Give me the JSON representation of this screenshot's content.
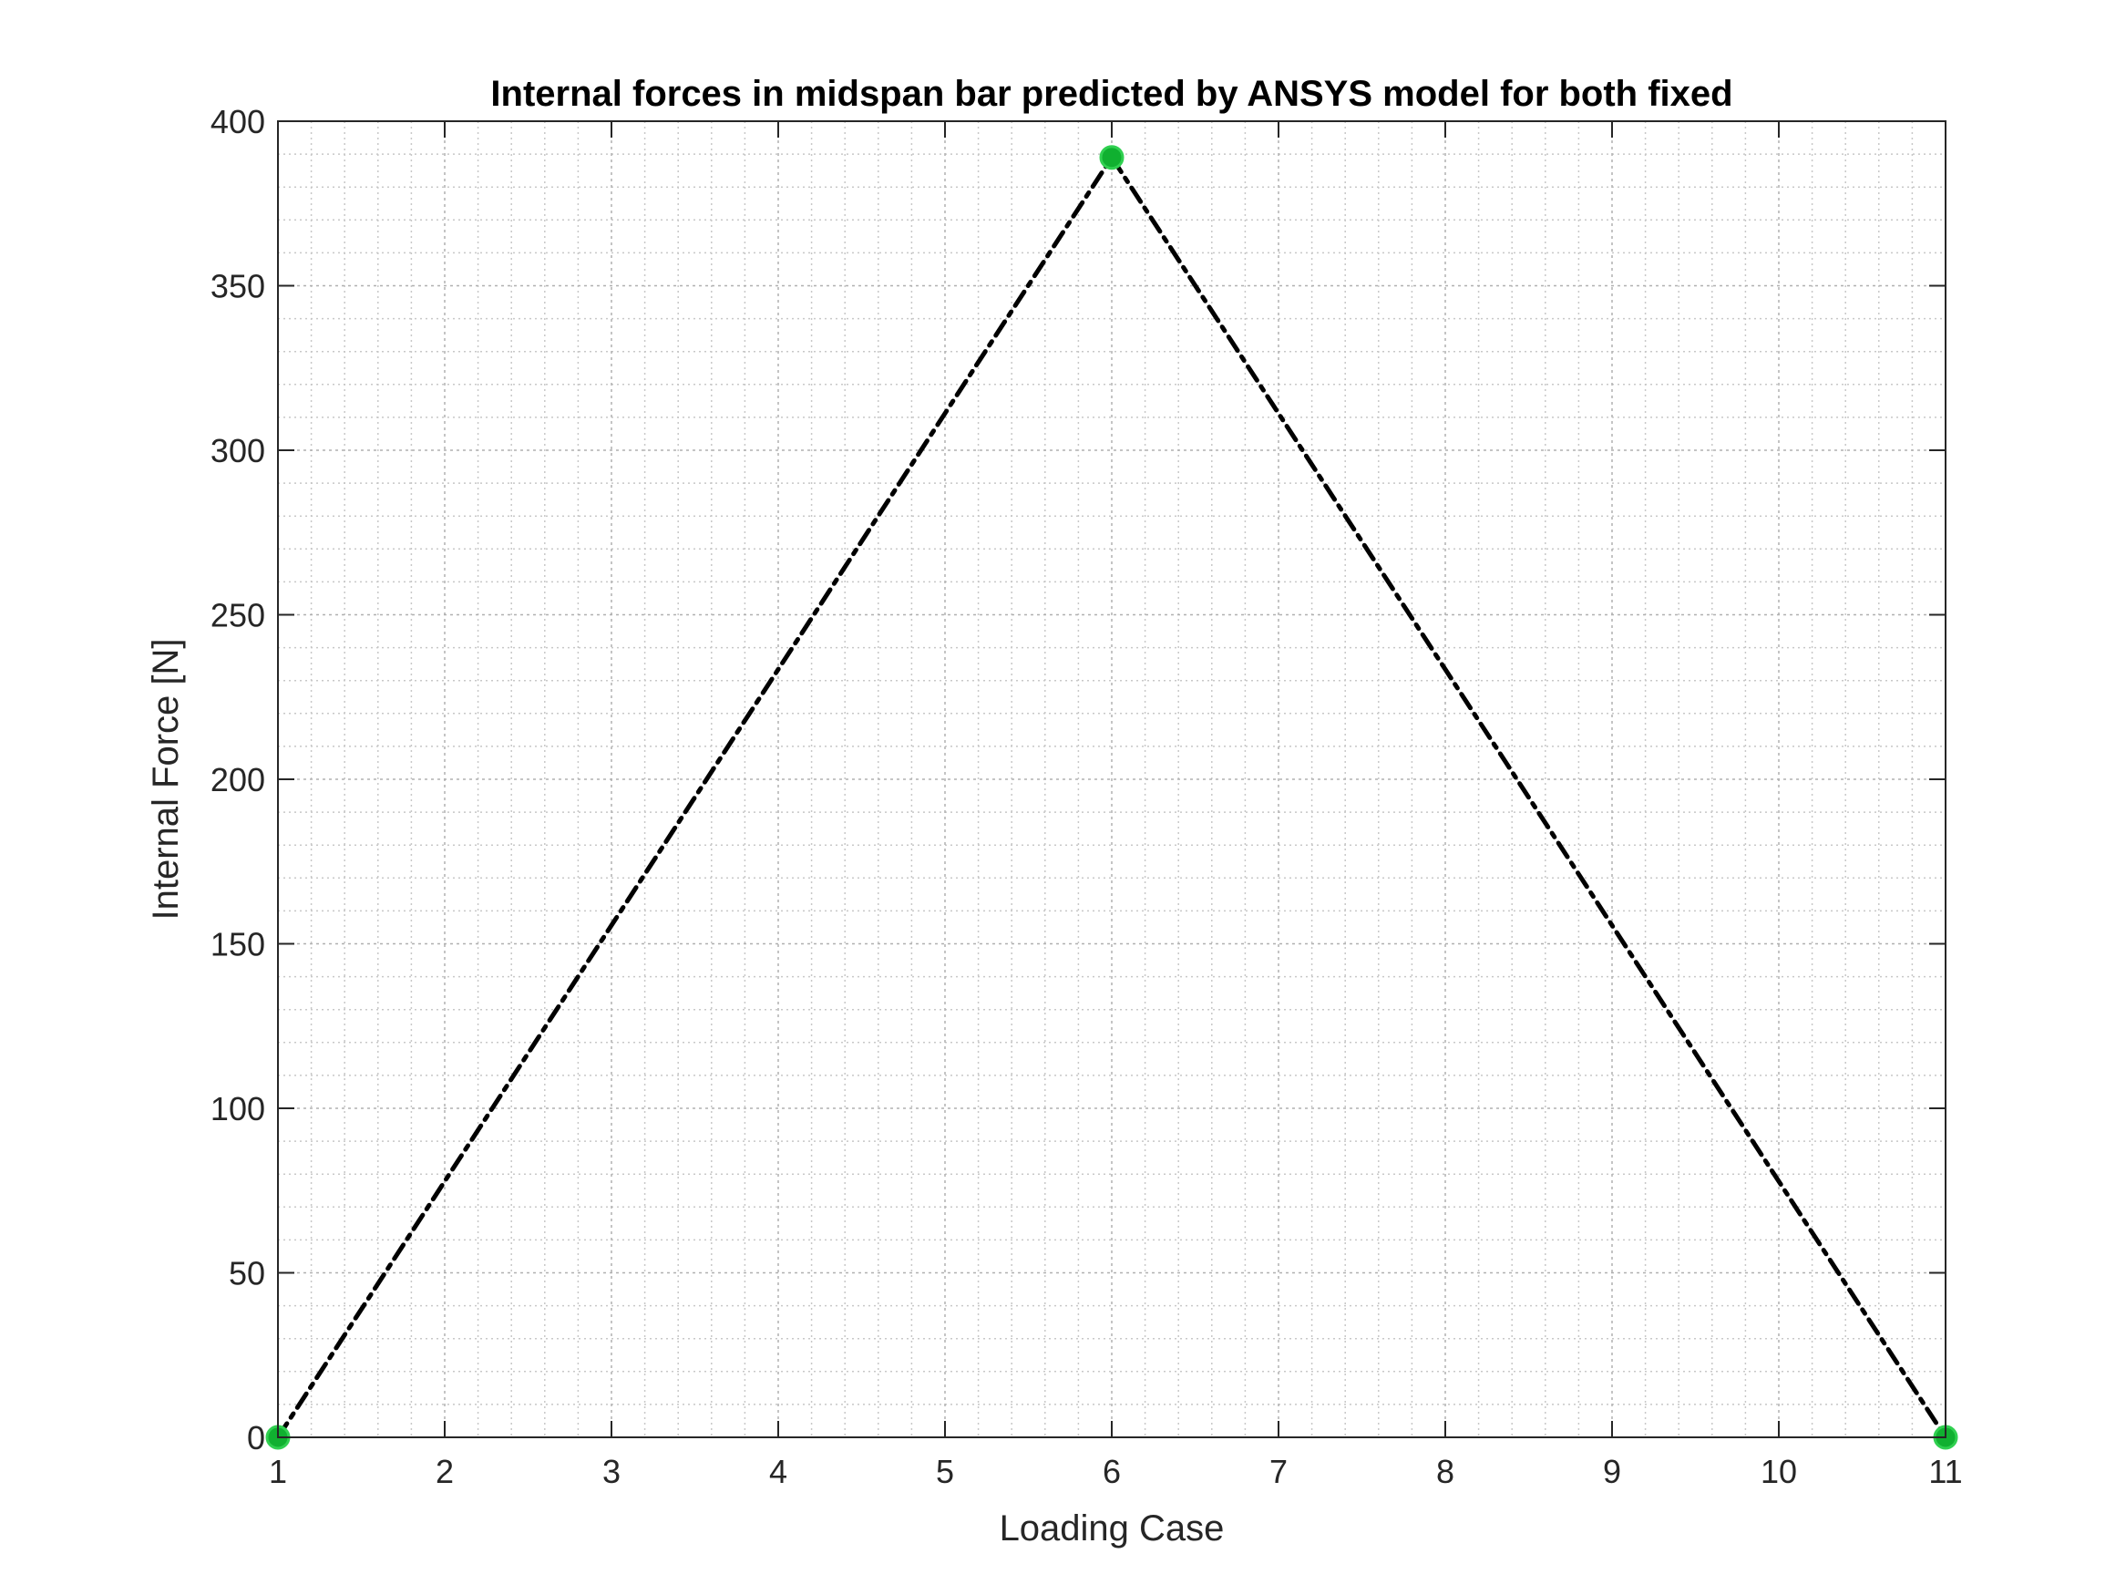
{
  "chart_data": {
    "type": "line",
    "title": "Internal forces in midspan bar predicted by ANSYS model for both fixed",
    "xlabel": "Loading Case",
    "ylabel": "Internal Force [N]",
    "xlim": [
      1,
      11
    ],
    "ylim": [
      0,
      400
    ],
    "xticks": [
      1,
      2,
      3,
      4,
      5,
      6,
      7,
      8,
      9,
      10,
      11
    ],
    "yticks": [
      0,
      50,
      100,
      150,
      200,
      250,
      300,
      350,
      400
    ],
    "grid": true,
    "minor_grid": true,
    "series": [
      {
        "x": [
          1,
          2,
          3,
          4,
          5,
          6,
          7,
          8,
          9,
          10,
          11
        ],
        "values": [
          0,
          77.8,
          155.6,
          233.4,
          311.2,
          389,
          311.2,
          233.4,
          155.6,
          77.8,
          0
        ],
        "line_color": "#000000",
        "line_style": "dash-dot"
      },
      {
        "x": [
          1,
          6,
          11
        ],
        "values": [
          0,
          389,
          0
        ],
        "marker_color": "#10b030",
        "marker": "circle"
      }
    ]
  }
}
